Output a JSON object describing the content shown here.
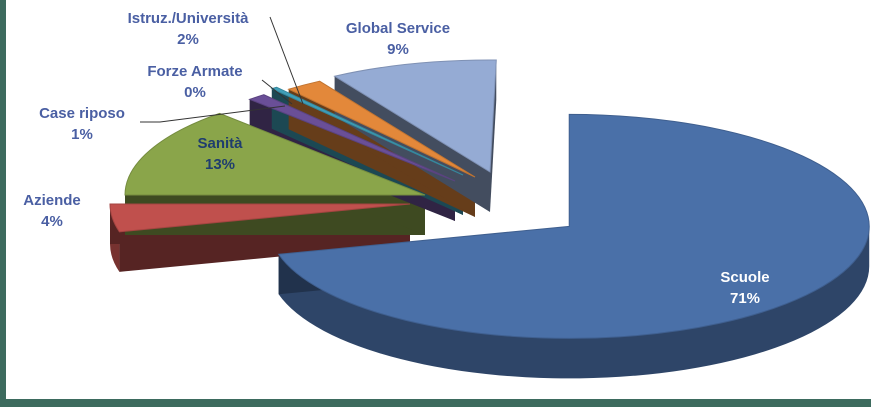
{
  "chart_data": {
    "type": "pie",
    "title": "",
    "slices": [
      {
        "label": "Scuole",
        "value": 71,
        "display": "71%",
        "color": "#4a70a8"
      },
      {
        "label": "Aziende",
        "value": 4,
        "display": "4%",
        "color": "#c0504d"
      },
      {
        "label": "Sanità",
        "value": 13,
        "display": "13%",
        "color": "#8aa54a"
      },
      {
        "label": "Case riposo",
        "value": 1,
        "display": "1%",
        "color": "#6a4f97"
      },
      {
        "label": "Forze Armate",
        "value": 0,
        "display": "0%",
        "color": "#3f9fb8"
      },
      {
        "label": "Istruz./Università",
        "value": 2,
        "display": "2%",
        "color": "#e3883a"
      },
      {
        "label": "Global Service",
        "value": 9,
        "display": "9%",
        "color": "#95abd4"
      }
    ],
    "legend": "none",
    "style": "3d-exploded"
  }
}
